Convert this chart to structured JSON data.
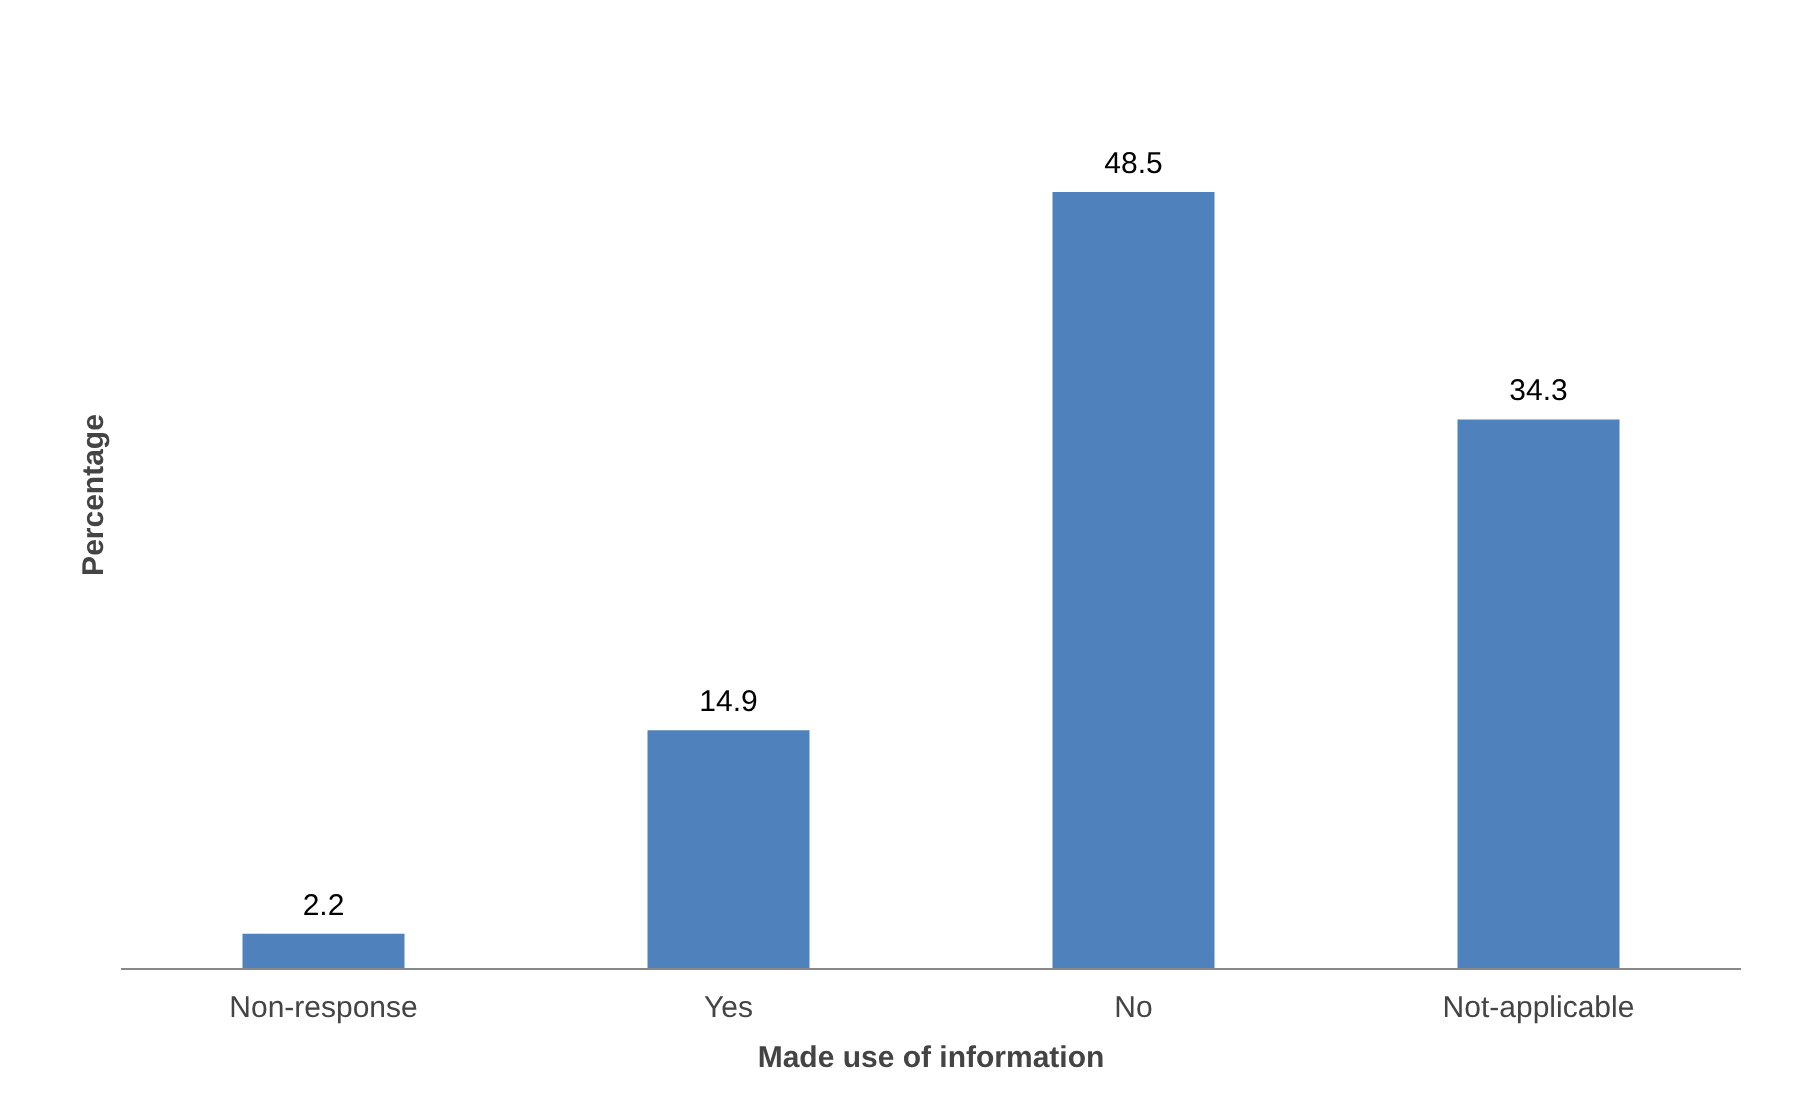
{
  "chart_data": {
    "type": "bar",
    "xlabel": "Made use of information",
    "ylabel": "Percentage",
    "categories": [
      "Non-response",
      "Yes",
      "No",
      "Not-applicable"
    ],
    "values": [
      2.2,
      14.9,
      48.5,
      34.3
    ],
    "color": "#4f81bd",
    "data_labels": true,
    "grid": false
  }
}
